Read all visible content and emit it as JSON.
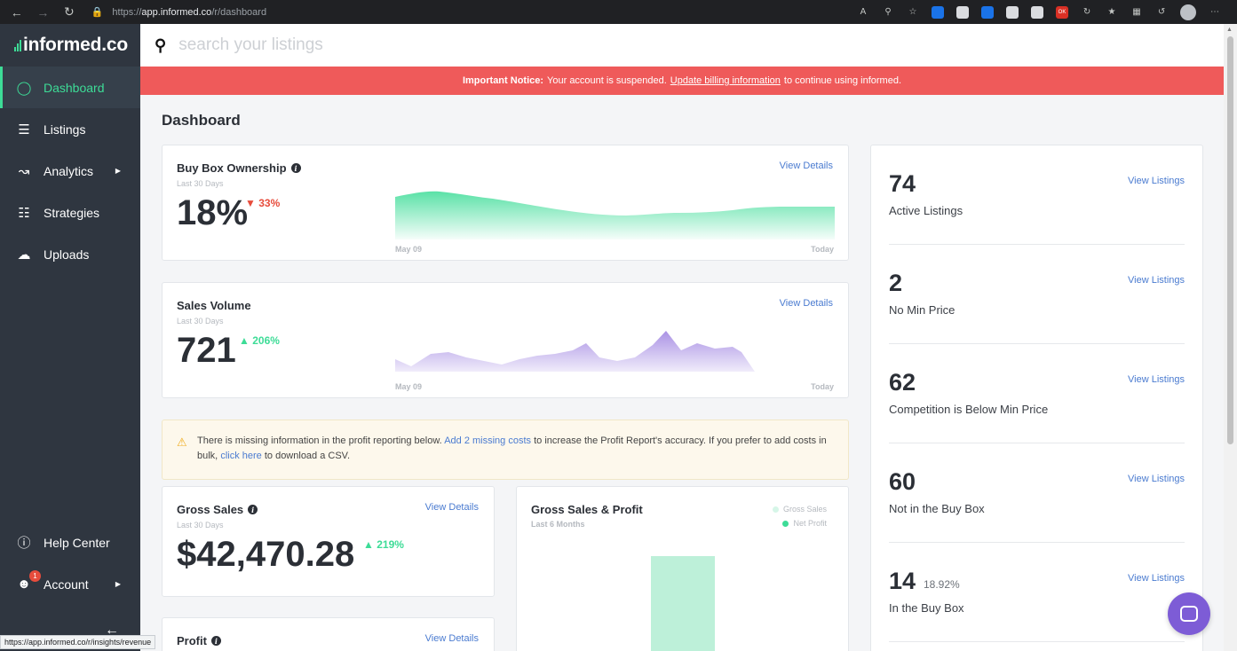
{
  "browser": {
    "url_prefix": "https://",
    "url_host": "app.informed.co",
    "url_path": "/r/dashboard",
    "status_url": "https://app.informed.co/r/insights/revenue"
  },
  "sidebar": {
    "logo": "informed.co",
    "items": [
      {
        "label": "Dashboard",
        "icon": "speedometer-icon"
      },
      {
        "label": "Listings",
        "icon": "list-icon"
      },
      {
        "label": "Analytics",
        "icon": "chart-icon"
      },
      {
        "label": "Strategies",
        "icon": "sliders-icon"
      },
      {
        "label": "Uploads",
        "icon": "cloud-upload-icon"
      }
    ],
    "help_label": "Help Center",
    "account_label": "Account",
    "account_badge": "1"
  },
  "search": {
    "placeholder": "search your listings"
  },
  "notice": {
    "bold": "Important Notice:",
    "text1": "Your account is suspended.",
    "link": "Update billing information",
    "text2": "to continue using informed."
  },
  "page_title": "Dashboard",
  "buy_box": {
    "title": "Buy Box Ownership",
    "subtitle": "Last 30 Days",
    "value": "18%",
    "delta": "33%",
    "link": "View Details",
    "axis_start": "May 09",
    "axis_end": "Today"
  },
  "sales_volume": {
    "title": "Sales Volume",
    "subtitle": "Last 30 Days",
    "value": "721",
    "delta": "206%",
    "link": "View Details",
    "axis_start": "May 09",
    "axis_end": "Today"
  },
  "warning": {
    "text1": "There is missing information in the profit reporting below.",
    "link1": "Add 2 missing costs",
    "text2": "to increase the Profit Report's accuracy. If you prefer to add costs in bulk,",
    "link2": "click here",
    "text3": "to download a CSV."
  },
  "gross_sales": {
    "title": "Gross Sales",
    "subtitle": "Last 30 Days",
    "value": "$42,470.28",
    "delta": "219%",
    "link": "View Details"
  },
  "gross_profit_chart": {
    "title": "Gross Sales & Profit",
    "subtitle": "Last 6 Months",
    "legend_gross": "Gross Sales",
    "legend_net": "Net Profit",
    "colors": {
      "gross": "#bdf0d9",
      "net": "#3ddc97"
    }
  },
  "profit": {
    "title": "Profit",
    "link": "View Details"
  },
  "stats": [
    {
      "num": "74",
      "label": "Active Listings",
      "link": "View Listings",
      "pct": ""
    },
    {
      "num": "2",
      "label": "No Min Price",
      "link": "View Listings",
      "pct": ""
    },
    {
      "num": "62",
      "label": "Competition is Below Min Price",
      "link": "View Listings",
      "pct": ""
    },
    {
      "num": "60",
      "label": "Not in the Buy Box",
      "link": "View Listings",
      "pct": ""
    },
    {
      "num": "14",
      "label": "In the Buy Box",
      "link": "View Listings",
      "pct": "18.92%"
    }
  ],
  "colors": {
    "accent": "#3ddc97",
    "sidebar": "#2f3640",
    "notice": "#ef5a5a",
    "link": "#4a7bd0",
    "purple": "#b49be6"
  }
}
